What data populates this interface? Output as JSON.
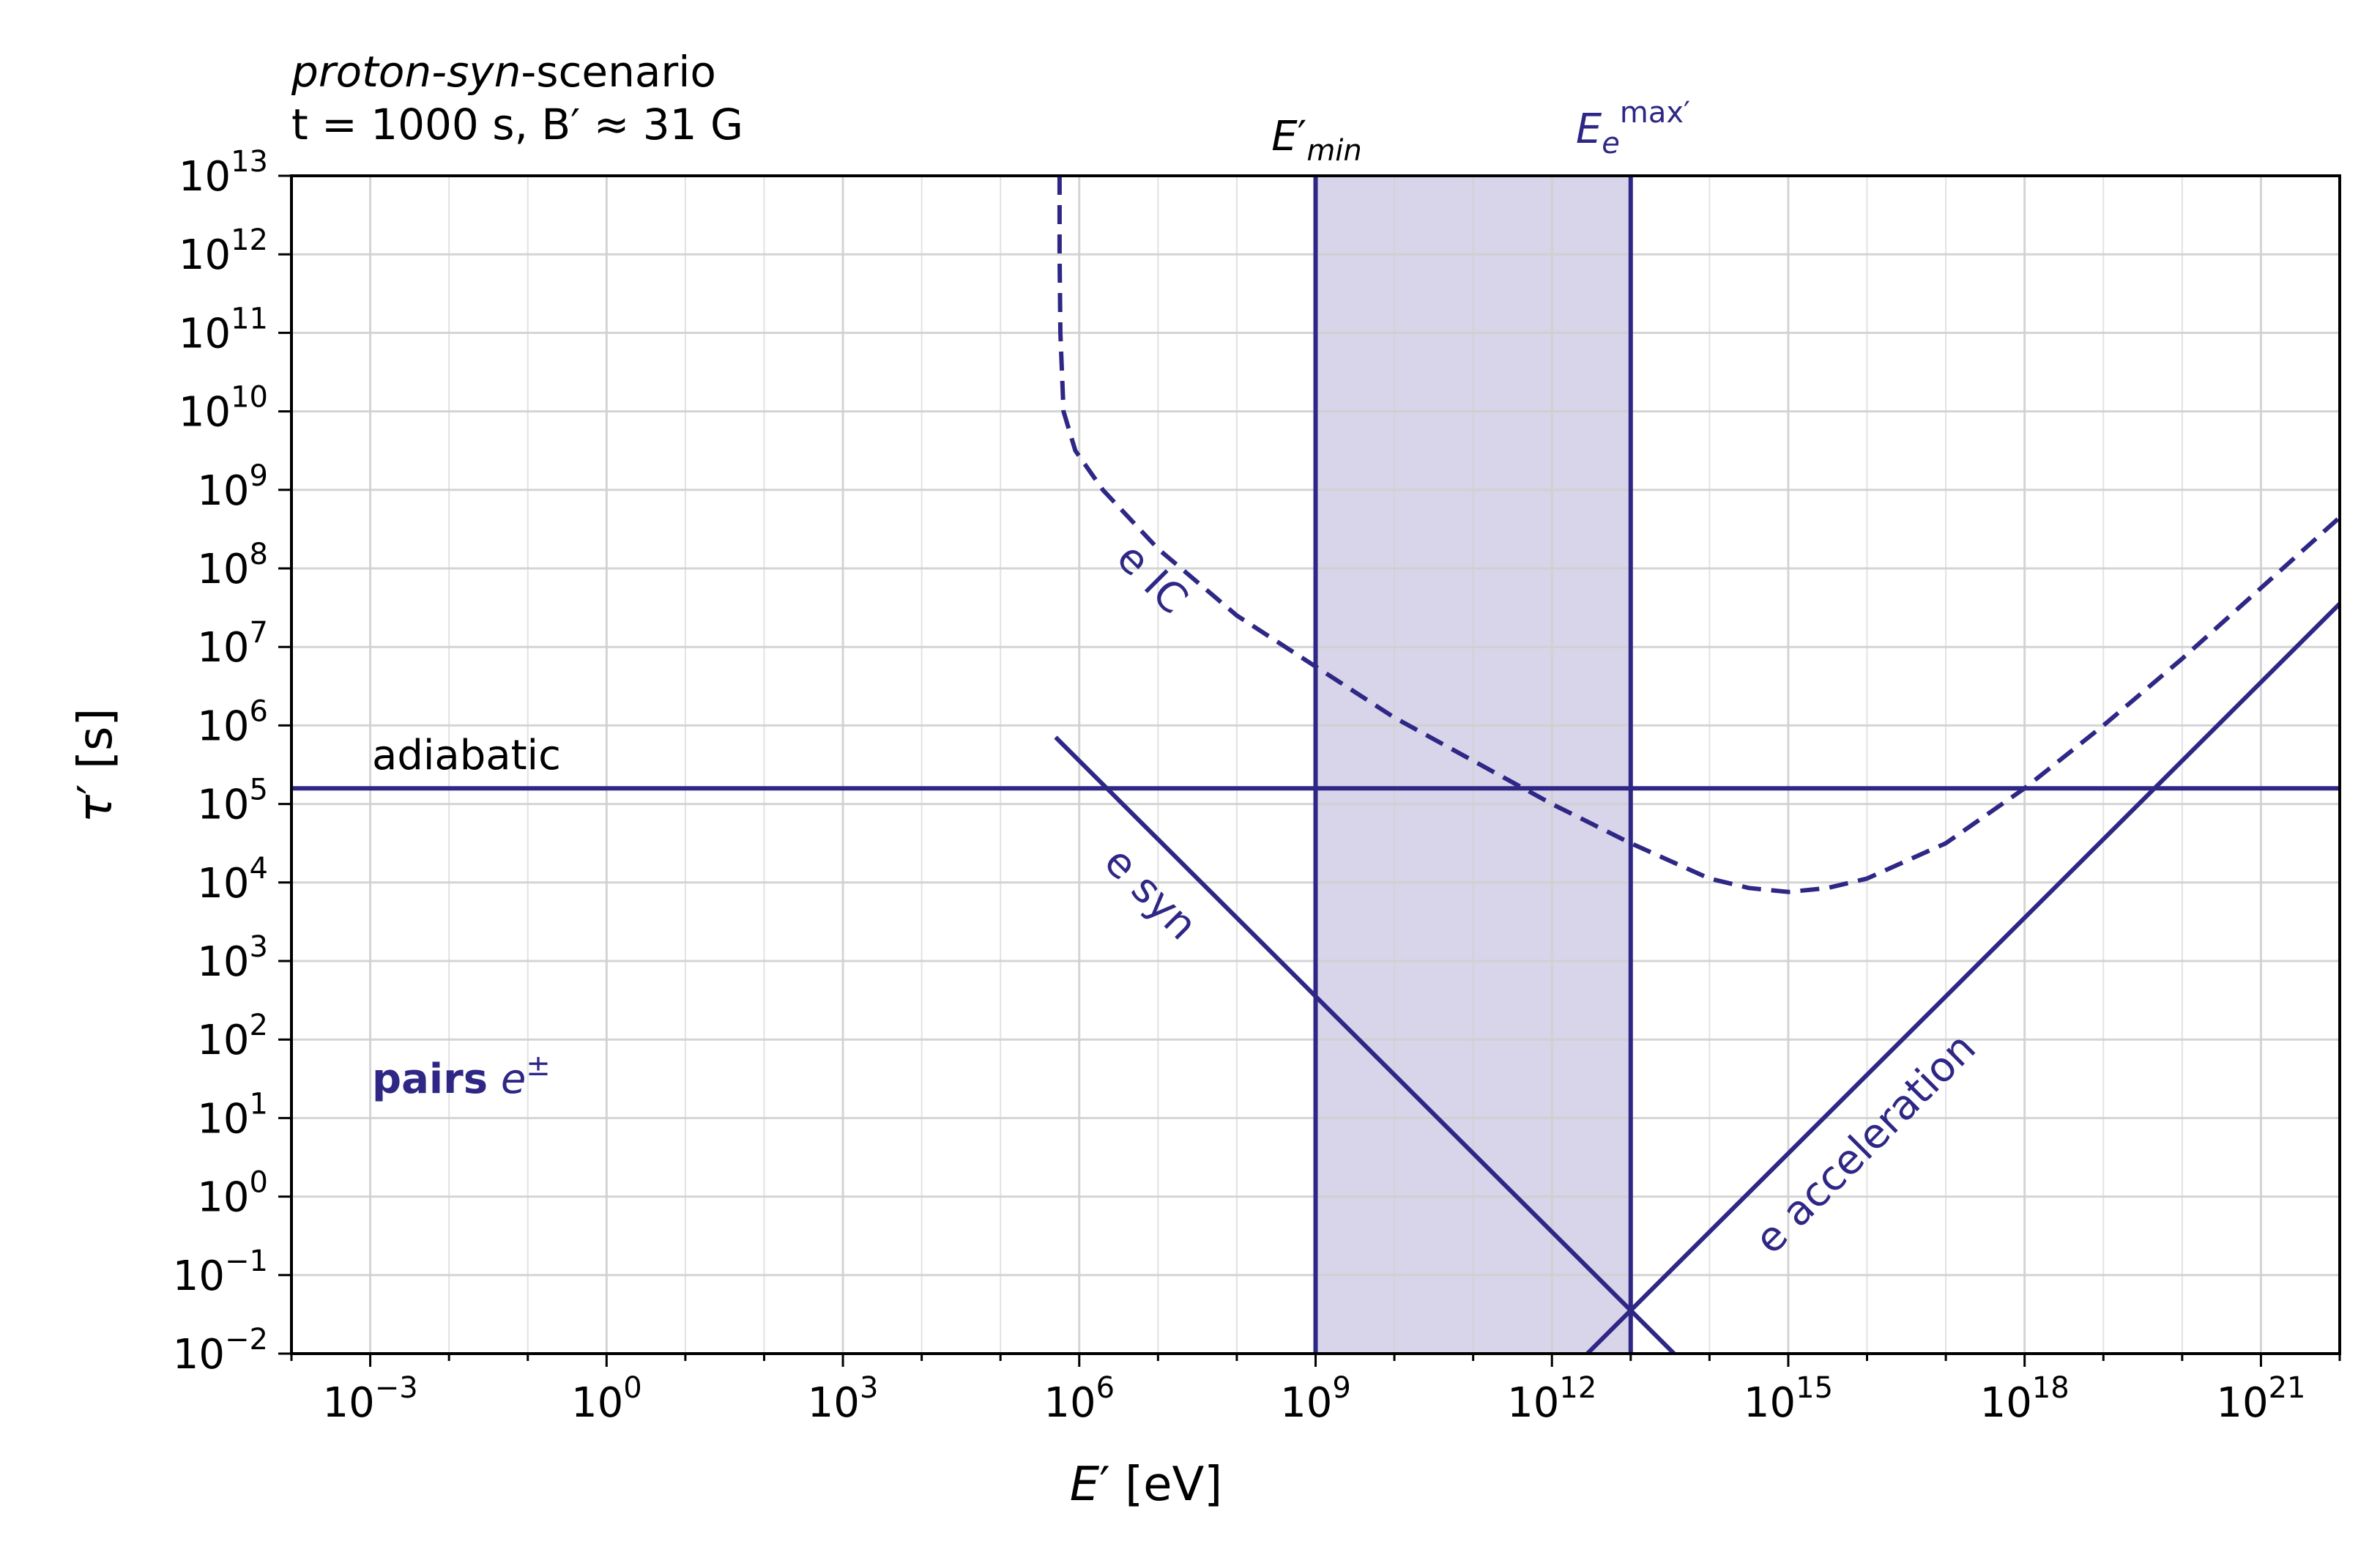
{
  "colors": {
    "series": "#2e2785",
    "band_fill": "#d8d4e9",
    "grid": "#cfcfcf",
    "axis": "#000000"
  },
  "header": {
    "line1_italic": "proton-syn",
    "line1_rest": "-scenario",
    "line2": "t = 1000 s, B′ ≈ 31 G"
  },
  "chart_data": {
    "type": "line",
    "xscale": "log",
    "yscale": "log",
    "xlabel": "E′ [eV]",
    "ylabel": "τ′ [s]",
    "xlim_log10": [
      -4,
      22
    ],
    "ylim_log10": [
      -2,
      13
    ],
    "xticks_log10": [
      -3,
      0,
      3,
      6,
      9,
      12,
      15,
      18,
      21
    ],
    "yticks_log10": [
      -2,
      -1,
      0,
      1,
      2,
      3,
      4,
      5,
      6,
      7,
      8,
      9,
      10,
      11,
      12,
      13
    ],
    "grid": true,
    "band": {
      "x_log10": [
        9,
        13
      ],
      "fill": "band_fill"
    },
    "vlines": [
      {
        "x_log10": 9,
        "label": "E′min",
        "label_main": "E′",
        "label_sub": "min",
        "label_color": "#000000"
      },
      {
        "x_log10": 13,
        "label": "Eemax′",
        "label_main": "E",
        "label_sub": "e",
        "label_sup": "max′",
        "label_color": "#2e2785"
      }
    ],
    "series": [
      {
        "name": "adiabatic",
        "style": "solid",
        "points_log10": [
          [
            -4,
            5.2
          ],
          [
            22,
            5.2
          ]
        ]
      },
      {
        "name": "e syn",
        "style": "solid",
        "points_log10": [
          [
            5.7,
            5.85
          ],
          [
            7,
            4.55
          ],
          [
            9,
            2.55
          ],
          [
            11,
            0.55
          ],
          [
            13,
            -1.45
          ],
          [
            13.55,
            -2
          ]
        ]
      },
      {
        "name": "e acceleration",
        "style": "solid",
        "points_log10": [
          [
            12.45,
            -2
          ],
          [
            13,
            -1.45
          ],
          [
            15,
            0.55
          ],
          [
            17,
            2.55
          ],
          [
            19,
            4.55
          ],
          [
            22,
            7.55
          ]
        ]
      },
      {
        "name": "e IC",
        "style": "dashed",
        "points_log10": [
          [
            5.75,
            13
          ],
          [
            5.75,
            12
          ],
          [
            5.76,
            11
          ],
          [
            5.8,
            10
          ],
          [
            5.95,
            9.5
          ],
          [
            6.3,
            9.0
          ],
          [
            7,
            8.25
          ],
          [
            8,
            7.4
          ],
          [
            9,
            6.75
          ],
          [
            10,
            6.1
          ],
          [
            11,
            5.55
          ],
          [
            12,
            5.0
          ],
          [
            13,
            4.5
          ],
          [
            14,
            4.05
          ],
          [
            14.5,
            3.93
          ],
          [
            15,
            3.88
          ],
          [
            15.5,
            3.93
          ],
          [
            16,
            4.05
          ],
          [
            17,
            4.5
          ],
          [
            18,
            5.2
          ],
          [
            19,
            6.0
          ],
          [
            20,
            6.85
          ],
          [
            21,
            7.75
          ],
          [
            22,
            8.65
          ]
        ]
      }
    ],
    "annotations": {
      "adiabatic": "adiabatic",
      "e_syn": "e syn",
      "e_ic": "e IC",
      "e_acc": "e acceleration",
      "pairs_bold": "pairs",
      "pairs_symbol": "e±"
    }
  }
}
